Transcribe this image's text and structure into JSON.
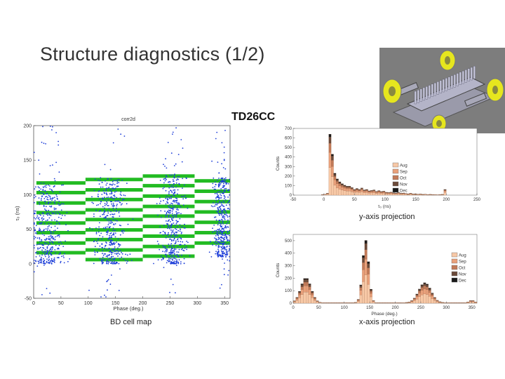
{
  "slide": {
    "title": "Structure diagnostics (1/2)",
    "structure_label": "TD26CC",
    "captions": {
      "bd_cell_map": "BD cell map",
      "y_projection": "y-axis projection",
      "x_projection": "x-axis projection"
    }
  },
  "colors": {
    "scatter_points": "#1f3fd8",
    "bands": "#22bb22",
    "hist_fill": "#e9a87f",
    "render_bg": "#7d7d7d",
    "rf_flange": "#e0e01a"
  },
  "chart_data": [
    {
      "id": "bd-cell-map",
      "type": "scatter",
      "title": "corr2d",
      "xlabel": "Phase (deg.)",
      "ylabel": "τ₀ (ns)",
      "xlim": [
        0,
        360
      ],
      "ylim": [
        -50,
        200
      ],
      "xticks": [
        0,
        50,
        100,
        150,
        200,
        250,
        300,
        350
      ],
      "yticks": [
        -50,
        0,
        50,
        100,
        150,
        200
      ],
      "clusters": [
        {
          "phase": 25,
          "spread": 14,
          "tau_min": 0,
          "tau_max": 115
        },
        {
          "phase": 140,
          "spread": 14,
          "tau_min": 0,
          "tau_max": 125
        },
        {
          "phase": 255,
          "spread": 12,
          "tau_min": 0,
          "tau_max": 130
        },
        {
          "phase": 345,
          "spread": 8,
          "tau_min": 10,
          "tau_max": 125
        }
      ],
      "band_groups": [
        {
          "phase_start": 5,
          "phase_end": 95,
          "tau_values": [
            117,
            103,
            88,
            74,
            59,
            45,
            30,
            16
          ]
        },
        {
          "phase_start": 95,
          "phase_end": 200,
          "tau_values": [
            122,
            107,
            93,
            78,
            64,
            49,
            35,
            20,
            6
          ]
        },
        {
          "phase_start": 200,
          "phase_end": 295,
          "tau_values": [
            127,
            113,
            98,
            83,
            69,
            54,
            40,
            25,
            11
          ]
        },
        {
          "phase_start": 295,
          "phase_end": 360,
          "tau_values": [
            120,
            105,
            90,
            75,
            60,
            45,
            30
          ]
        }
      ]
    },
    {
      "id": "y-projection",
      "type": "bar",
      "xlabel": "τ₀ (ns)",
      "ylabel": "Counts",
      "xlim": [
        -50,
        250
      ],
      "ylim": [
        0,
        700
      ],
      "xticks": [
        -50,
        0,
        50,
        100,
        150,
        200,
        250
      ],
      "yticks": [
        0,
        100,
        200,
        300,
        400,
        500,
        600,
        700
      ],
      "legend": [
        "Aug",
        "Sep",
        "Oct",
        "Nov",
        "Dec"
      ],
      "legend_colors": [
        "#f7c8a6",
        "#e9a07a",
        "#c27a58",
        "#6b4a3a",
        "#1a1a1a"
      ],
      "bins": [
        {
          "x": -2,
          "v": 5
        },
        {
          "x": 2,
          "v": 10
        },
        {
          "x": 6,
          "v": 20
        },
        {
          "x": 10,
          "v": 640
        },
        {
          "x": 14,
          "v": 430
        },
        {
          "x": 18,
          "v": 230
        },
        {
          "x": 22,
          "v": 170
        },
        {
          "x": 26,
          "v": 140
        },
        {
          "x": 30,
          "v": 120
        },
        {
          "x": 34,
          "v": 105
        },
        {
          "x": 38,
          "v": 95
        },
        {
          "x": 42,
          "v": 95
        },
        {
          "x": 46,
          "v": 80
        },
        {
          "x": 50,
          "v": 60
        },
        {
          "x": 54,
          "v": 70
        },
        {
          "x": 58,
          "v": 60
        },
        {
          "x": 62,
          "v": 75
        },
        {
          "x": 66,
          "v": 55
        },
        {
          "x": 70,
          "v": 60
        },
        {
          "x": 74,
          "v": 45
        },
        {
          "x": 78,
          "v": 50
        },
        {
          "x": 82,
          "v": 55
        },
        {
          "x": 86,
          "v": 40
        },
        {
          "x": 90,
          "v": 48
        },
        {
          "x": 94,
          "v": 38
        },
        {
          "x": 98,
          "v": 42
        },
        {
          "x": 102,
          "v": 30
        },
        {
          "x": 106,
          "v": 28
        },
        {
          "x": 110,
          "v": 32
        },
        {
          "x": 114,
          "v": 25
        },
        {
          "x": 118,
          "v": 22
        },
        {
          "x": 122,
          "v": 28
        },
        {
          "x": 126,
          "v": 20
        },
        {
          "x": 130,
          "v": 22
        },
        {
          "x": 134,
          "v": 18
        },
        {
          "x": 138,
          "v": 15
        },
        {
          "x": 142,
          "v": 20
        },
        {
          "x": 146,
          "v": 12
        },
        {
          "x": 150,
          "v": 15
        },
        {
          "x": 154,
          "v": 10
        },
        {
          "x": 158,
          "v": 12
        },
        {
          "x": 162,
          "v": 8
        },
        {
          "x": 166,
          "v": 10
        },
        {
          "x": 170,
          "v": 6
        },
        {
          "x": 174,
          "v": 8
        },
        {
          "x": 178,
          "v": 5
        },
        {
          "x": 182,
          "v": 6
        },
        {
          "x": 186,
          "v": 4
        },
        {
          "x": 190,
          "v": 5
        },
        {
          "x": 194,
          "v": 8
        },
        {
          "x": 198,
          "v": 60
        }
      ]
    },
    {
      "id": "x-projection",
      "type": "bar",
      "xlabel": "Phase (deg.)",
      "ylabel": "Counts",
      "xlim": [
        0,
        360
      ],
      "ylim": [
        0,
        550
      ],
      "xticks": [
        0,
        50,
        100,
        150,
        200,
        250,
        300,
        350
      ],
      "yticks": [
        0,
        100,
        200,
        300,
        400,
        500
      ],
      "legend": [
        "Aug",
        "Sep",
        "Oct",
        "Nov",
        "Dec"
      ],
      "legend_colors": [
        "#f7c8a6",
        "#e9a07a",
        "#c27a58",
        "#6b4a3a",
        "#1a1a1a"
      ],
      "peaks": [
        {
          "center": 25,
          "sigma": 10,
          "height": 200
        },
        {
          "center": 142,
          "sigma": 6,
          "height": 500
        },
        {
          "center": 258,
          "sigma": 12,
          "height": 160
        },
        {
          "center": 350,
          "sigma": 5,
          "height": 20
        }
      ],
      "bin_width": 5
    }
  ]
}
